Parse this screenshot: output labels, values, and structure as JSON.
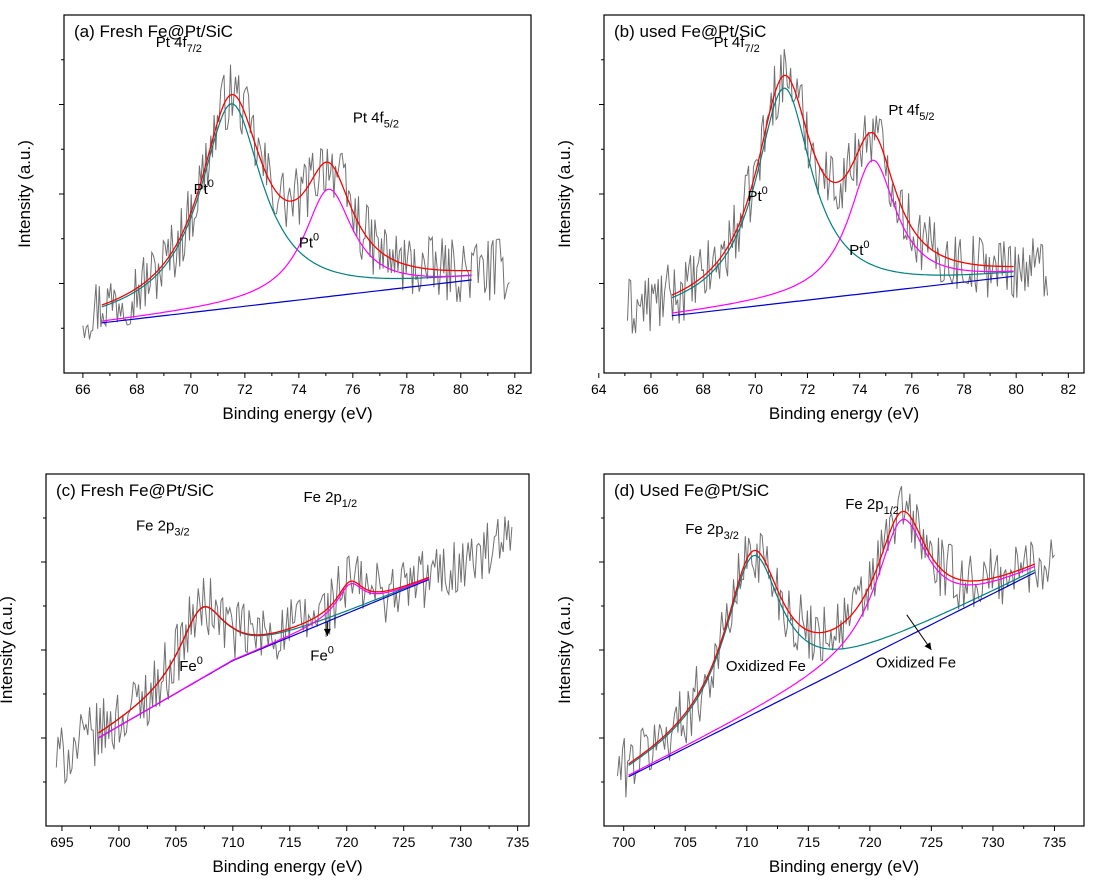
{
  "chart_data": [
    {
      "type": "line",
      "title": "(a) Fresh Fe@Pt/SiC",
      "xlabel": "Binding energy (eV)",
      "ylabel": "Intensity (a.u.)",
      "xlim": [
        65.3,
        82.6
      ],
      "ylim": [
        0,
        1
      ],
      "xticks": [
        "66",
        "68",
        "70",
        "72",
        "74",
        "76",
        "78",
        "80",
        "82"
      ],
      "raw_x": [
        66.0,
        81.8
      ],
      "fit_x": [
        66.7,
        80.4
      ],
      "background": {
        "x": [
          66.7,
          80.4
        ],
        "y": [
          0.14,
          0.26
        ]
      },
      "peaks": [
        {
          "label": "Pt 4f7/2",
          "state": "Pt0",
          "center": 71.5,
          "height": 0.57,
          "width": 1.4,
          "color": "#008080"
        },
        {
          "label": "Pt 4f5/2",
          "state": "Pt0",
          "center": 75.1,
          "height": 0.3,
          "width": 1.1,
          "color": "#ff00ff"
        }
      ],
      "envelope_color": "#ff0000",
      "background_color": "#0000cc",
      "annotations": [
        {
          "text": "Pt 4f",
          "sub": "7/2",
          "x": 68.7,
          "y": 0.91
        },
        {
          "text": "Pt 4f",
          "sub": "5/2",
          "x": 76.0,
          "y": 0.7
        },
        {
          "text": "Pt",
          "sup": "0",
          "x": 70.1,
          "y": 0.5
        },
        {
          "text": "Pt",
          "sup": "0",
          "x": 74.0,
          "y": 0.35
        }
      ]
    },
    {
      "type": "line",
      "title": "(b) used Fe@Pt/SiC",
      "xlabel": "Binding energy (eV)",
      "ylabel": "Intensity (a.u.)",
      "xlim": [
        64.2,
        82.6
      ],
      "ylim": [
        0,
        1
      ],
      "xticks": [
        "64",
        "66",
        "68",
        "70",
        "72",
        "74",
        "76",
        "78",
        "80",
        "82"
      ],
      "raw_x": [
        65.1,
        81.2
      ],
      "fit_x": [
        66.8,
        79.9
      ],
      "background": {
        "x": [
          66.8,
          79.9
        ],
        "y": [
          0.16,
          0.27
        ]
      },
      "peaks": [
        {
          "label": "Pt 4f7/2",
          "state": "Pt0",
          "center": 71.1,
          "height": 0.6,
          "width": 1.3,
          "color": "#008080"
        },
        {
          "label": "Pt 4f5/2",
          "state": "Pt0",
          "center": 74.5,
          "height": 0.37,
          "width": 1.1,
          "color": "#ff00ff"
        }
      ],
      "envelope_color": "#ff0000",
      "background_color": "#0000cc",
      "annotations": [
        {
          "text": "Pt 4f",
          "sub": "7/2",
          "x": 68.4,
          "y": 0.91
        },
        {
          "text": "Pt 4f",
          "sub": "5/2",
          "x": 75.1,
          "y": 0.72
        },
        {
          "text": "Pt",
          "sup": "0",
          "x": 69.7,
          "y": 0.48
        },
        {
          "text": "Pt",
          "sup": "0",
          "x": 73.6,
          "y": 0.33
        }
      ]
    },
    {
      "type": "line",
      "title": "(c) Fresh Fe@Pt/SiC",
      "xlabel": "Binding energy (eV)",
      "ylabel": "Intensity (a.u.)",
      "xlim": [
        693.6,
        736.0
      ],
      "ylim": [
        0,
        1
      ],
      "xticks": [
        "695",
        "700",
        "705",
        "710",
        "715",
        "720",
        "725",
        "730",
        "735"
      ],
      "raw_x": [
        694.5,
        734.5
      ],
      "fit_x": [
        698.2,
        727.2
      ],
      "background": {
        "x": [
          698.2,
          710,
          727.2
        ],
        "y": [
          0.25,
          0.47,
          0.7
        ]
      },
      "peaks": [
        {
          "label": "Fe 2p3/2",
          "state": "Fe0",
          "center": 707.3,
          "height": 0.2,
          "width": 2.5,
          "color": "#008080"
        },
        {
          "label": "Fe 2p1/2",
          "state": "Fe0",
          "center": 720.3,
          "height": 0.08,
          "width": 1.4,
          "color": "#ff00ff"
        }
      ],
      "envelope_color": "#ff0000",
      "background_color": "#0000cc",
      "annotations": [
        {
          "text": "Fe 2p",
          "sub": "3/2",
          "x": 701.5,
          "y": 0.84
        },
        {
          "text": "Fe 2p",
          "sub": "1/2",
          "x": 716.2,
          "y": 0.92
        },
        {
          "text": "Fe",
          "sup": "0",
          "x": 705.3,
          "y": 0.44
        },
        {
          "text": "Fe",
          "sup": "0",
          "x": 716.8,
          "y": 0.47
        }
      ],
      "arrows": [
        {
          "from": [
            718.3,
            0.58
          ],
          "to": [
            718.3,
            0.54
          ]
        }
      ]
    },
    {
      "type": "line",
      "title": "(d) Used Fe@Pt/SiC",
      "xlabel": "Binding energy (eV)",
      "ylabel": "Intensity (a.u.)",
      "xlim": [
        698.4,
        737.4
      ],
      "ylim": [
        0,
        1
      ],
      "xticks": [
        "700",
        "705",
        "710",
        "715",
        "720",
        "725",
        "730",
        "735"
      ],
      "raw_x": [
        699.5,
        735.0
      ],
      "fit_x": [
        700.4,
        733.4
      ],
      "background": {
        "x": [
          700.4,
          733.4
        ],
        "y": [
          0.14,
          0.72
        ]
      },
      "peaks": [
        {
          "label": "Fe 2p3/2",
          "state": "Oxidized Fe",
          "center": 710.5,
          "height": 0.45,
          "width": 2.8,
          "color": "#008080"
        },
        {
          "label": "Fe 2p1/2",
          "state": "Oxidized Fe",
          "center": 722.6,
          "height": 0.34,
          "width": 2.5,
          "color": "#ff00ff"
        }
      ],
      "envelope_color": "#ff0000",
      "background_color": "#0000cc",
      "annotations": [
        {
          "text": "Fe 2p",
          "sub": "3/2",
          "x": 705.0,
          "y": 0.83
        },
        {
          "text": "Fe 2p",
          "sub": "1/2",
          "x": 718.0,
          "y": 0.9
        },
        {
          "text": "Oxidized Fe",
          "x": 708.3,
          "y": 0.44
        },
        {
          "text": "Oxidized Fe",
          "x": 720.5,
          "y": 0.45
        }
      ],
      "arrows": [
        {
          "from": [
            723.0,
            0.6
          ],
          "to": [
            725.0,
            0.5
          ]
        }
      ]
    }
  ]
}
